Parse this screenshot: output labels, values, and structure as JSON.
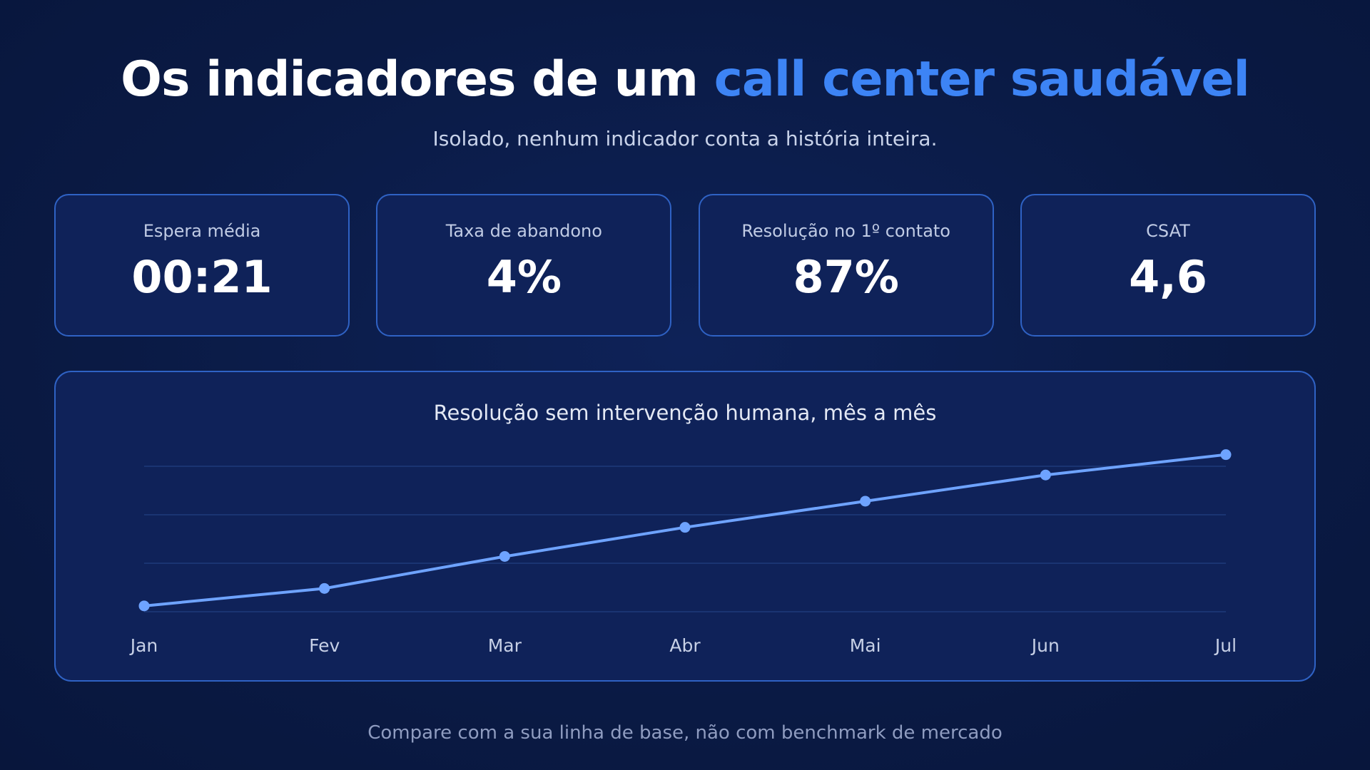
{
  "header": {
    "title_part1": "Os indicadores de um ",
    "title_accent": "call center saudável",
    "subtitle": "Isolado, nenhum indicador conta a história inteira."
  },
  "kpis": [
    {
      "label": "Espera média",
      "value": "00:21"
    },
    {
      "label": "Taxa de abandono",
      "value": "4%"
    },
    {
      "label": "Resolução no 1º contato",
      "value": "87%"
    },
    {
      "label": "CSAT",
      "value": "4,6"
    }
  ],
  "chart_data": {
    "type": "line",
    "title": "Resolução sem intervenção humana, mês a mês",
    "categories": [
      "Jan",
      "Fev",
      "Mar",
      "Abr",
      "Mai",
      "Jun",
      "Jul"
    ],
    "series": [
      {
        "values": [
          2,
          8,
          19,
          29,
          38,
          47,
          54
        ]
      }
    ],
    "ylim": [
      0,
      50
    ],
    "grid": true,
    "line_color": "#6ea3ff",
    "grid_color": "#1f3a7a"
  },
  "footer": {
    "note": "Compare com a sua linha de base, não com benchmark de mercado"
  },
  "colors": {
    "background": "#0a1a44",
    "card_background": "#0f2259",
    "card_border": "#2f62c4",
    "accent": "#3d84f5"
  }
}
